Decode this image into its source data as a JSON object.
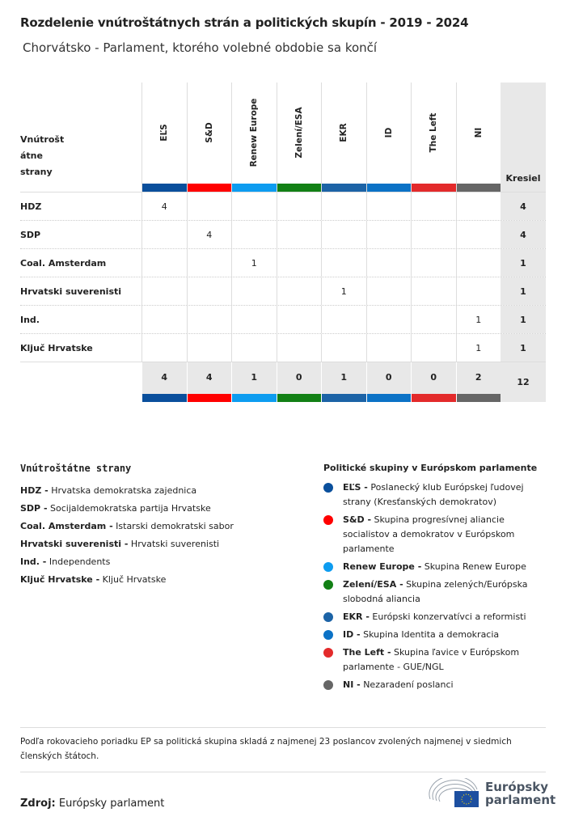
{
  "title": "Rozdelenie vnútroštátnych strán a politických skupín - 2019 - 2024",
  "subtitle": "Chorvátsko - Parlament, ktorého volebné obdobie sa končí",
  "table": {
    "row_header": "Vnútrošt átne strany",
    "seats_header": "Kresiel",
    "groups": [
      {
        "name": "EĽS",
        "color": "#0a4f9c"
      },
      {
        "name": "S&D",
        "color": "#ff0000"
      },
      {
        "name": "Renew Europe",
        "color": "#0d9cf0"
      },
      {
        "name": "Zelení/ESA",
        "color": "#128015"
      },
      {
        "name": "EKR",
        "color": "#1c63a6"
      },
      {
        "name": "ID",
        "color": "#0b72c6"
      },
      {
        "name": "The Left",
        "color": "#e32a2b"
      },
      {
        "name": "NI",
        "color": "#666666"
      }
    ],
    "rows": [
      {
        "party": "HDZ",
        "values": [
          "4",
          "",
          "",
          "",
          "",
          "",
          "",
          ""
        ],
        "seats": "4"
      },
      {
        "party": "SDP",
        "values": [
          "",
          "4",
          "",
          "",
          "",
          "",
          "",
          ""
        ],
        "seats": "4"
      },
      {
        "party": "Coal. Amsterdam",
        "values": [
          "",
          "",
          "1",
          "",
          "",
          "",
          "",
          ""
        ],
        "seats": "1"
      },
      {
        "party": "Hrvatski suverenisti",
        "values": [
          "",
          "",
          "",
          "",
          "1",
          "",
          "",
          ""
        ],
        "seats": "1"
      },
      {
        "party": "Ind.",
        "values": [
          "",
          "",
          "",
          "",
          "",
          "",
          "",
          "1"
        ],
        "seats": "1"
      },
      {
        "party": "Ključ Hrvatske",
        "values": [
          "",
          "",
          "",
          "",
          "",
          "",
          "",
          "1"
        ],
        "seats": "1"
      }
    ],
    "totals": [
      "4",
      "4",
      "1",
      "0",
      "1",
      "0",
      "0",
      "2"
    ],
    "total_seats": "12"
  },
  "legend_parties": {
    "title": "Vnútroštátne strany",
    "items": [
      {
        "abbr": "HDZ -",
        "name": "Hrvatska demokratska zajednica"
      },
      {
        "abbr": "SDP -",
        "name": "Socijaldemokratska partija Hrvatske"
      },
      {
        "abbr": "Coal. Amsterdam -",
        "name": "Istarski demokratski sabor"
      },
      {
        "abbr": "Hrvatski suverenisti -",
        "name": "Hrvatski suverenisti"
      },
      {
        "abbr": "Ind. -",
        "name": "Independents"
      },
      {
        "abbr": "Ključ Hrvatske -",
        "name": "Ključ Hrvatske"
      }
    ]
  },
  "legend_groups": {
    "title": "Politické skupiny v Európskom parlamente",
    "items": [
      {
        "abbr": "EĽS -",
        "name": "Poslanecký klub Európskej ľudovej strany (Kresťanských demokratov)"
      },
      {
        "abbr": "S&D -",
        "name": "Skupina progresívnej aliancie socialistov a demokratov v Európskom parlamente"
      },
      {
        "abbr": "Renew Europe -",
        "name": "Skupina Renew Europe"
      },
      {
        "abbr": "Zelení/ESA -",
        "name": "Skupina zelených/Európska slobodná aliancia"
      },
      {
        "abbr": "EKR -",
        "name": "Európski konzervatívci a reformisti"
      },
      {
        "abbr": "ID -",
        "name": "Skupina Identita a demokracia"
      },
      {
        "abbr": "The Left -",
        "name": "Skupina ľavice v Európskom parlamente - GUE/NGL"
      },
      {
        "abbr": "NI -",
        "name": "Nezaradení poslanci"
      }
    ]
  },
  "note": "Podľa rokovacieho poriadku EP sa politická skupina skladá z najmenej 23 poslancov zvolených najmenej v siedmich členských štátoch.",
  "source": {
    "label": "Zdroj:",
    "value": "Európsky parlament"
  },
  "logo": {
    "line1": "Európsky",
    "line2": "parlament"
  }
}
